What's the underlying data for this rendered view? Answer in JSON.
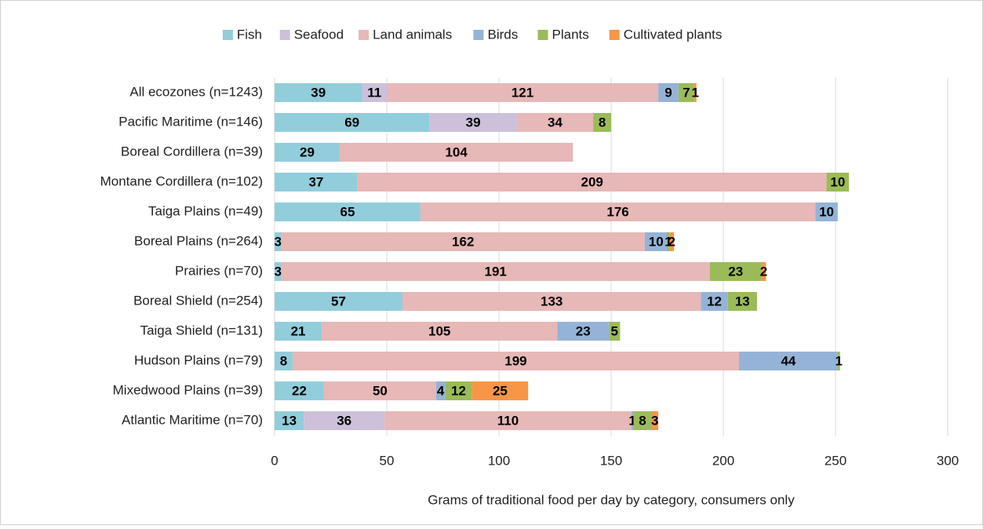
{
  "chart_data": {
    "type": "stacked-bar-horizontal",
    "x_label": "Grams of traditional food per day by category, consumers only",
    "categories": [
      "All ecozones (n=1243)",
      "Pacific Maritime (n=146)",
      "Boreal Cordillera (n=39)",
      "Montane Cordillera (n=102)",
      "Taiga Plains (n=49)",
      "Boreal Plains (n=264)",
      "Prairies (n=70)",
      "Boreal Shield (n=254)",
      "Taiga Shield (n=131)",
      "Hudson Plains (n=79)",
      "Mixedwood Plains (n=39)",
      "Atlantic Maritime (n=70)"
    ],
    "series": [
      {
        "name": "Fish",
        "color": "#92cddc",
        "values": [
          39,
          69,
          29,
          37,
          65,
          3,
          3,
          57,
          21,
          8,
          22,
          13
        ]
      },
      {
        "name": "Seafood",
        "color": "#ccc0da",
        "values": [
          11,
          39,
          null,
          null,
          null,
          null,
          null,
          null,
          null,
          null,
          null,
          36
        ]
      },
      {
        "name": "Land animals",
        "color": "#e6b8b7",
        "values": [
          121,
          34,
          104,
          209,
          176,
          162,
          191,
          133,
          105,
          199,
          50,
          110
        ]
      },
      {
        "name": "Birds",
        "color": "#95b3d7",
        "values": [
          9,
          null,
          null,
          null,
          10,
          10,
          null,
          12,
          23,
          44,
          4,
          1
        ]
      },
      {
        "name": "Plants",
        "color": "#9bbb59",
        "values": [
          7,
          8,
          null,
          10,
          null,
          1,
          23,
          13,
          5,
          1,
          12,
          8
        ]
      },
      {
        "name": "Cultivated plants",
        "color": "#f79646",
        "values": [
          1,
          null,
          null,
          null,
          null,
          2,
          2,
          null,
          null,
          null,
          25,
          3
        ]
      }
    ],
    "xlim": [
      0,
      300
    ],
    "xticks": [
      0,
      50,
      100,
      150,
      200,
      250,
      300
    ],
    "grid": true,
    "legend": "top"
  }
}
